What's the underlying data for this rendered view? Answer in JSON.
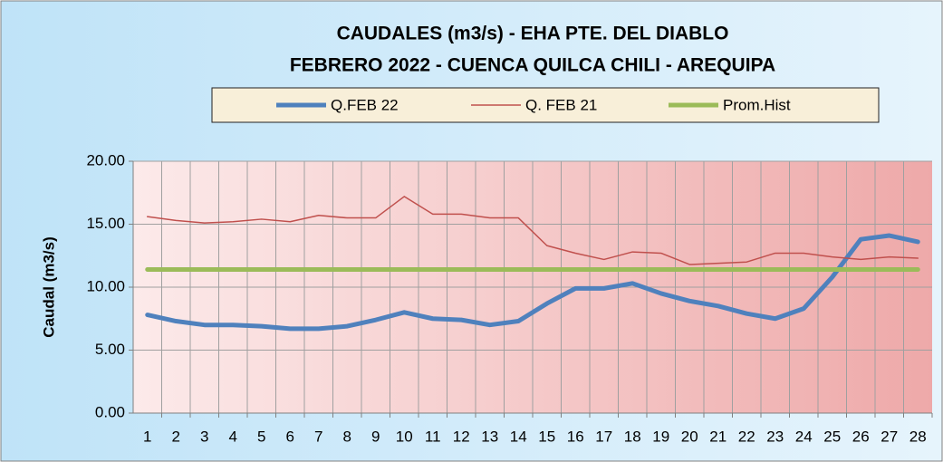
{
  "chart_data": {
    "type": "line",
    "title": "CAUDALES (m3/s) - EHA PTE. DEL DIABLO",
    "subtitle": "FEBRERO 2022 -  CUENCA QUILCA CHILI - AREQUIPA",
    "y_label": "Caudal  (m3/s)",
    "categories": [
      "1",
      "2",
      "3",
      "4",
      "5",
      "6",
      "7",
      "8",
      "9",
      "10",
      "11",
      "12",
      "13",
      "14",
      "15",
      "16",
      "17",
      "18",
      "19",
      "20",
      "21",
      "22",
      "23",
      "24",
      "25",
      "26",
      "27",
      "28"
    ],
    "series": [
      {
        "name": "Q.FEB 22",
        "color": "#4f81bd",
        "width": 5,
        "values": [
          7.8,
          7.3,
          7.0,
          7.0,
          6.9,
          6.7,
          6.7,
          6.9,
          7.4,
          8.0,
          7.5,
          7.4,
          7.0,
          7.3,
          8.7,
          9.9,
          9.9,
          10.3,
          9.5,
          8.9,
          8.5,
          7.9,
          7.5,
          8.3,
          10.8,
          13.8,
          14.1,
          13.6
        ]
      },
      {
        "name": "Q. FEB 21",
        "color": "#c0504d",
        "width": 1.5,
        "values": [
          15.6,
          15.3,
          15.1,
          15.2,
          15.4,
          15.2,
          15.7,
          15.5,
          15.5,
          17.2,
          15.8,
          15.8,
          15.5,
          15.5,
          13.3,
          12.7,
          12.2,
          12.8,
          12.7,
          11.8,
          11.9,
          12.0,
          12.7,
          12.7,
          12.4,
          12.2,
          12.4,
          12.3
        ]
      },
      {
        "name": "Prom.Hist",
        "color": "#9bbb59",
        "width": 5,
        "values": [
          11.4,
          11.4,
          11.4,
          11.4,
          11.4,
          11.4,
          11.4,
          11.4,
          11.4,
          11.4,
          11.4,
          11.4,
          11.4,
          11.4,
          11.4,
          11.4,
          11.4,
          11.4,
          11.4,
          11.4,
          11.4,
          11.4,
          11.4,
          11.4,
          11.4,
          11.4,
          11.4,
          11.4
        ]
      }
    ],
    "ylim": [
      0,
      20
    ],
    "yticks": [
      {
        "value": 0,
        "label": "0.00"
      },
      {
        "value": 5,
        "label": "5.00"
      },
      {
        "value": 10,
        "label": "10.00"
      },
      {
        "value": 15,
        "label": "15.00"
      },
      {
        "value": 20,
        "label": "20.00"
      }
    ],
    "grid": true,
    "legend": "top"
  }
}
